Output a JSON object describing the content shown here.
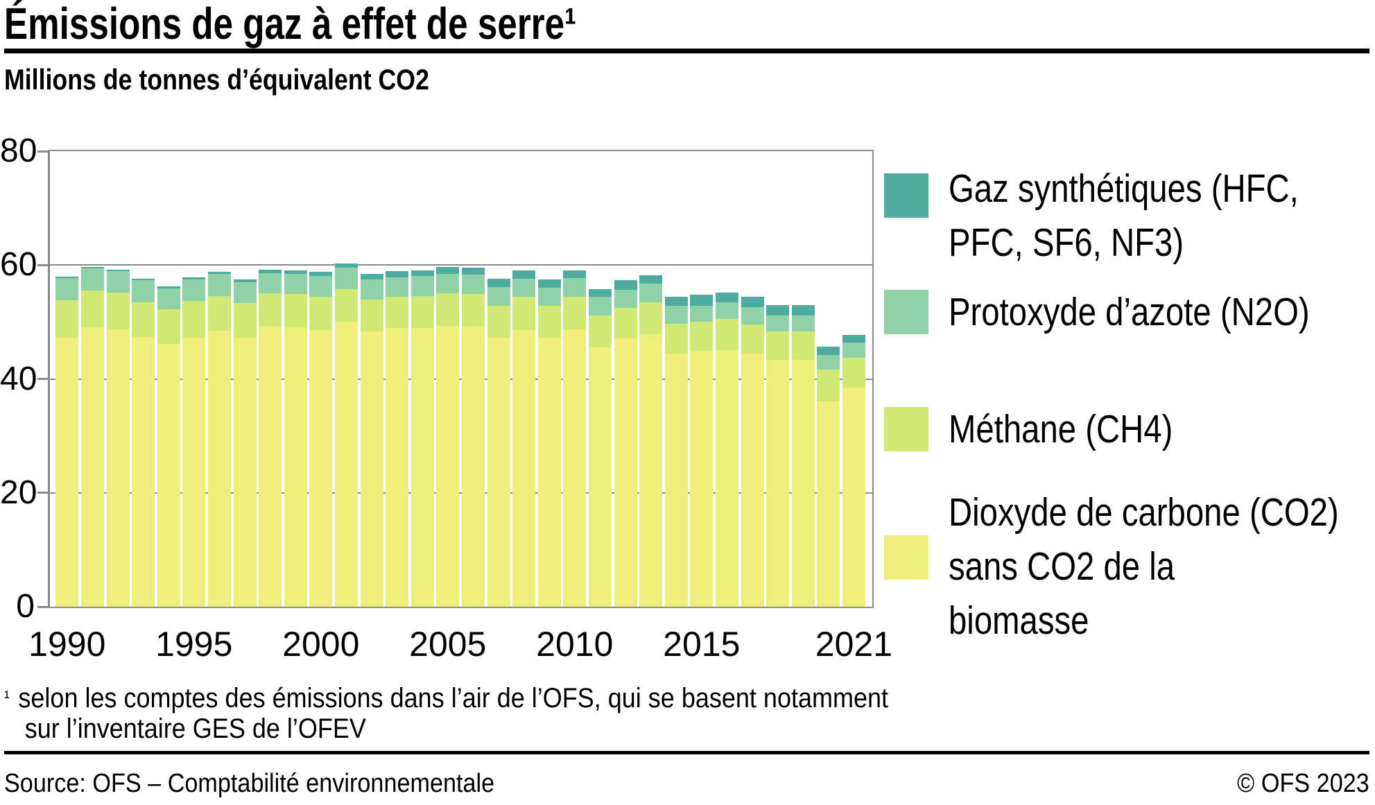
{
  "header": {
    "title": "Émissions de gaz à effet de serre¹",
    "subtitle": "Millions de tonnes d’équivalent CO2"
  },
  "chart_data": {
    "type": "bar",
    "stacked": true,
    "title": "Émissions de gaz à effet de serre",
    "ylabel": "Millions de tonnes d’équivalent CO2",
    "ylim": [
      0,
      80
    ],
    "yticks": [
      0,
      20,
      40,
      60,
      80
    ],
    "gridlines_at": [
      20,
      40,
      60
    ],
    "grid": true,
    "legend_position": "right",
    "x": [
      1990,
      1991,
      1992,
      1993,
      1994,
      1995,
      1996,
      1997,
      1998,
      1999,
      2000,
      2001,
      2002,
      2003,
      2004,
      2005,
      2006,
      2007,
      2008,
      2009,
      2010,
      2011,
      2012,
      2013,
      2014,
      2015,
      2016,
      2017,
      2018,
      2019,
      2020,
      2021
    ],
    "x_ticks": [
      {
        "label": "1990",
        "index": 0
      },
      {
        "label": "1995",
        "index": 5
      },
      {
        "label": "2000",
        "index": 10
      },
      {
        "label": "2005",
        "index": 15
      },
      {
        "label": "2010",
        "index": 20
      },
      {
        "label": "2015",
        "index": 25
      },
      {
        "label": "2021",
        "index": 31
      }
    ],
    "series": [
      {
        "name": "Dioxyde de carbone (CO2) sans CO2 de la biomasse",
        "color": "#f0ee7b",
        "values": [
          47.3,
          49.1,
          48.7,
          47.4,
          46.1,
          47.3,
          48.5,
          47.3,
          49.2,
          49.1,
          48.6,
          50.0,
          48.3,
          49.0,
          49.0,
          49.3,
          49.2,
          47.3,
          48.6,
          47.3,
          48.7,
          45.6,
          47.1,
          47.9,
          44.4,
          44.9,
          45.1,
          44.4,
          43.3,
          43.3,
          36.1,
          38.5
        ]
      },
      {
        "name": "Méthane (CH4)",
        "color": "#d2e875",
        "values": [
          6.5,
          6.4,
          6.5,
          6.1,
          6.1,
          6.4,
          6.1,
          6.0,
          5.8,
          5.8,
          5.8,
          5.8,
          5.7,
          5.4,
          5.6,
          5.7,
          5.7,
          5.5,
          5.8,
          5.6,
          5.7,
          5.5,
          5.4,
          5.5,
          5.3,
          5.1,
          5.4,
          5.2,
          5.1,
          5.1,
          5.5,
          5.2
        ]
      },
      {
        "name": "Protoxyde d’azote (N2O)",
        "color": "#8fd2a8",
        "values": [
          3.9,
          3.9,
          3.7,
          3.9,
          3.7,
          3.8,
          3.8,
          3.7,
          3.6,
          3.6,
          3.7,
          3.8,
          3.5,
          3.5,
          3.5,
          3.5,
          3.4,
          3.3,
          3.2,
          3.1,
          3.3,
          3.3,
          3.2,
          3.3,
          3.1,
          2.9,
          2.9,
          3.0,
          2.8,
          2.8,
          2.6,
          2.7
        ]
      },
      {
        "name": "Gaz synthétiques (HFC, PFC, SF6, NF3)",
        "color": "#4dac9d",
        "values": [
          0.3,
          0.3,
          0.3,
          0.2,
          0.4,
          0.3,
          0.4,
          0.5,
          0.6,
          0.6,
          0.7,
          0.7,
          1.0,
          1.0,
          1.0,
          1.2,
          1.2,
          1.5,
          1.5,
          1.5,
          1.4,
          1.4,
          1.6,
          1.5,
          1.6,
          1.9,
          1.8,
          1.8,
          1.8,
          1.8,
          1.5,
          1.3
        ]
      }
    ]
  },
  "legend": {
    "items": [
      {
        "color": "#4dac9d",
        "lines": [
          "Gaz synthétiques (HFC,",
          "PFC, SF6, NF3)"
        ]
      },
      {
        "color": "#8fd2a8",
        "lines": [
          "Protoxyde d’azote (N2O)"
        ]
      },
      {
        "color": "#d2e875",
        "lines": [
          "Méthane (CH4)"
        ]
      },
      {
        "color": "#f0ee7b",
        "lines": [
          "Dioxyde de carbone (CO2)",
          "sans CO2 de la",
          "biomasse"
        ]
      }
    ]
  },
  "footnote": {
    "marker": "¹",
    "line1": "selon les comptes des émissions dans l’air de l’OFS, qui se basent notamment",
    "line2": "sur l’inventaire GES de l’OFEV"
  },
  "footer": {
    "source": "Source: OFS – Comptabilité environnementale",
    "copyright": "© OFS 2023"
  }
}
